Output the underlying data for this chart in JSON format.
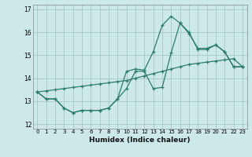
{
  "xlabel": "Humidex (Indice chaleur)",
  "bg_color": "#cce8e8",
  "grid_color": "#aacccc",
  "line_color": "#2e7c6e",
  "xlim": [
    -0.5,
    23.5
  ],
  "ylim": [
    11.8,
    17.2
  ],
  "yticks": [
    12,
    13,
    14,
    15,
    16,
    17
  ],
  "xticks": [
    0,
    1,
    2,
    3,
    4,
    5,
    6,
    7,
    8,
    9,
    10,
    11,
    12,
    13,
    14,
    15,
    16,
    17,
    18,
    19,
    20,
    21,
    22,
    23
  ],
  "line1_x": [
    0,
    1,
    2,
    3,
    4,
    5,
    6,
    7,
    8,
    9,
    10,
    11,
    12,
    13,
    14,
    15,
    16,
    17,
    18,
    19,
    20,
    21,
    22,
    23
  ],
  "line1_y": [
    13.4,
    13.1,
    13.1,
    12.7,
    12.5,
    12.6,
    12.6,
    12.6,
    12.7,
    13.1,
    13.55,
    14.3,
    14.3,
    13.55,
    13.6,
    15.1,
    16.4,
    15.95,
    15.3,
    15.3,
    15.45,
    15.15,
    14.5,
    14.5
  ],
  "line2_x": [
    0,
    1,
    2,
    3,
    4,
    5,
    6,
    7,
    8,
    9,
    10,
    11,
    12,
    13,
    14,
    15,
    16,
    17,
    18,
    19,
    20,
    21,
    22,
    23
  ],
  "line2_y": [
    13.4,
    13.1,
    13.1,
    12.7,
    12.5,
    12.6,
    12.6,
    12.6,
    12.7,
    13.1,
    14.3,
    14.4,
    14.35,
    15.15,
    16.3,
    16.7,
    16.4,
    16.0,
    15.25,
    15.25,
    15.45,
    15.15,
    14.5,
    14.5
  ],
  "line3_x": [
    0,
    1,
    2,
    3,
    4,
    5,
    6,
    7,
    8,
    9,
    10,
    11,
    12,
    13,
    14,
    15,
    16,
    17,
    18,
    19,
    20,
    21,
    22,
    23
  ],
  "line3_y": [
    13.4,
    13.45,
    13.5,
    13.55,
    13.6,
    13.65,
    13.7,
    13.75,
    13.8,
    13.85,
    13.9,
    14.0,
    14.1,
    14.2,
    14.3,
    14.4,
    14.5,
    14.6,
    14.65,
    14.7,
    14.75,
    14.8,
    14.85,
    14.5
  ]
}
